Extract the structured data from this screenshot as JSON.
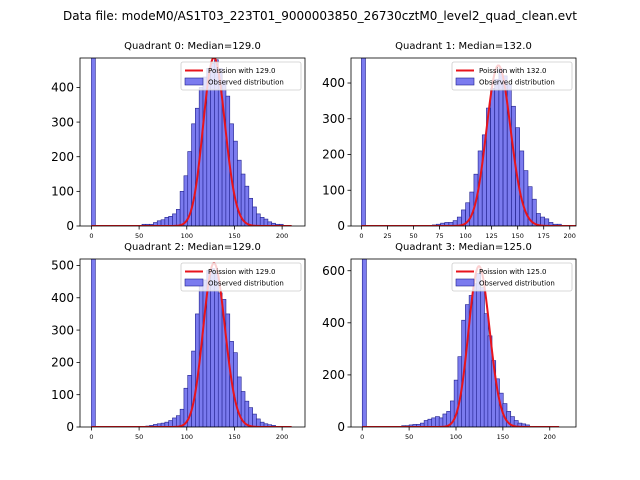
{
  "figure": {
    "suptitle": "Data file: modeM0/AS1T03_223T01_9000003850_26730cztM0_level2_quad_clean.evt"
  },
  "colors": {
    "bar_fill": "#7b7bef",
    "bar_edge": "#1f1f8c",
    "curve": "#e8141c",
    "axis": "#000000"
  },
  "chart_data": [
    {
      "type": "bar",
      "title": "Quadrant 0: Median=129.0",
      "xlim": [
        -12,
        224
      ],
      "ylim": [
        0,
        485
      ],
      "xticks": [
        0,
        50,
        100,
        150,
        200
      ],
      "yticks": [
        0,
        100,
        200,
        300,
        400
      ],
      "bin_width": 4.1,
      "bins": [
        [
          0,
          485
        ],
        [
          53,
          5
        ],
        [
          57,
          5
        ],
        [
          61,
          5
        ],
        [
          65,
          10
        ],
        [
          69,
          15
        ],
        [
          73,
          18
        ],
        [
          77,
          25
        ],
        [
          81,
          28
        ],
        [
          85,
          35
        ],
        [
          89,
          48
        ],
        [
          93,
          100
        ],
        [
          97,
          145
        ],
        [
          101,
          215
        ],
        [
          105,
          295
        ],
        [
          109,
          340
        ],
        [
          113,
          400
        ],
        [
          117,
          430
        ],
        [
          121,
          455
        ],
        [
          125,
          470
        ],
        [
          129,
          480
        ],
        [
          133,
          455
        ],
        [
          137,
          420
        ],
        [
          141,
          375
        ],
        [
          145,
          295
        ],
        [
          149,
          245
        ],
        [
          153,
          190
        ],
        [
          157,
          150
        ],
        [
          161,
          115
        ],
        [
          165,
          80
        ],
        [
          169,
          55
        ],
        [
          173,
          35
        ],
        [
          177,
          25
        ],
        [
          181,
          20
        ],
        [
          185,
          12
        ],
        [
          189,
          8
        ],
        [
          193,
          5
        ],
        [
          197,
          5
        ]
      ],
      "series": [
        {
          "name": "Poission with 129.0",
          "kind": "poisson",
          "lambda": 129.0,
          "scale": 486
        }
      ],
      "legend": [
        "Poission with 129.0",
        "Observed distribution"
      ],
      "legend_position": "upper right"
    },
    {
      "type": "bar",
      "title": "Quadrant 1: Median=132.0",
      "xlim": [
        -10,
        206
      ],
      "ylim": [
        0,
        470
      ],
      "xticks": [
        0,
        25,
        50,
        75,
        100,
        125,
        150,
        175,
        200
      ],
      "yticks": [
        0,
        100,
        200,
        300,
        400
      ],
      "bin_width": 3.9,
      "bins": [
        [
          0,
          470
        ],
        [
          68,
          3
        ],
        [
          72,
          5
        ],
        [
          76,
          8
        ],
        [
          80,
          10
        ],
        [
          84,
          10
        ],
        [
          88,
          15
        ],
        [
          92,
          25
        ],
        [
          96,
          45
        ],
        [
          100,
          65
        ],
        [
          104,
          95
        ],
        [
          108,
          145
        ],
        [
          112,
          210
        ],
        [
          116,
          255
        ],
        [
          120,
          330
        ],
        [
          124,
          385
        ],
        [
          128,
          410
        ],
        [
          132,
          440
        ],
        [
          136,
          420
        ],
        [
          140,
          395
        ],
        [
          144,
          335
        ],
        [
          148,
          275
        ],
        [
          152,
          210
        ],
        [
          156,
          155
        ],
        [
          160,
          110
        ],
        [
          164,
          75
        ],
        [
          168,
          35
        ],
        [
          172,
          25
        ],
        [
          176,
          20
        ],
        [
          180,
          10
        ],
        [
          184,
          5
        ],
        [
          188,
          5
        ]
      ],
      "series": [
        {
          "name": "Poission with 132.0",
          "kind": "poisson",
          "lambda": 132.0,
          "scale": 449
        }
      ],
      "legend": [
        "Poission with 132.0",
        "Observed distribution"
      ],
      "legend_position": "upper right"
    },
    {
      "type": "bar",
      "title": "Quadrant 2: Median=129.0",
      "xlim": [
        -12,
        224
      ],
      "ylim": [
        0,
        520
      ],
      "xticks": [
        0,
        50,
        100,
        150,
        200
      ],
      "yticks": [
        0,
        100,
        200,
        300,
        400,
        500
      ],
      "bin_width": 4.1,
      "bins": [
        [
          0,
          520
        ],
        [
          57,
          3
        ],
        [
          61,
          5
        ],
        [
          65,
          8
        ],
        [
          69,
          10
        ],
        [
          73,
          12
        ],
        [
          77,
          15
        ],
        [
          81,
          20
        ],
        [
          85,
          28
        ],
        [
          89,
          35
        ],
        [
          93,
          55
        ],
        [
          97,
          120
        ],
        [
          101,
          160
        ],
        [
          105,
          235
        ],
        [
          109,
          350
        ],
        [
          113,
          440
        ],
        [
          117,
          455
        ],
        [
          121,
          485
        ],
        [
          125,
          490
        ],
        [
          129,
          475
        ],
        [
          133,
          415
        ],
        [
          137,
          395
        ],
        [
          141,
          350
        ],
        [
          145,
          265
        ],
        [
          149,
          230
        ],
        [
          153,
          155
        ],
        [
          157,
          110
        ],
        [
          161,
          80
        ],
        [
          165,
          60
        ],
        [
          169,
          40
        ],
        [
          173,
          25
        ],
        [
          177,
          15
        ],
        [
          181,
          10
        ],
        [
          185,
          7
        ],
        [
          189,
          5
        ]
      ],
      "series": [
        {
          "name": "Poission with 129.0",
          "kind": "poisson",
          "lambda": 129.0,
          "scale": 507
        }
      ],
      "legend": [
        "Poission with 129.0",
        "Observed distribution"
      ],
      "legend_position": "upper right"
    },
    {
      "type": "bar",
      "title": "Quadrant 3: Median=125.0",
      "xlim": [
        -12,
        228
      ],
      "ylim": [
        0,
        645
      ],
      "xticks": [
        0,
        50,
        100,
        150,
        200
      ],
      "yticks": [
        0,
        200,
        400,
        600
      ],
      "bin_width": 4.4,
      "bins": [
        [
          0,
          645
        ],
        [
          42,
          5
        ],
        [
          46,
          5
        ],
        [
          50,
          8
        ],
        [
          54,
          10
        ],
        [
          58,
          10
        ],
        [
          62,
          15
        ],
        [
          66,
          25
        ],
        [
          70,
          30
        ],
        [
          74,
          35
        ],
        [
          78,
          40
        ],
        [
          82,
          35
        ],
        [
          86,
          50
        ],
        [
          90,
          60
        ],
        [
          94,
          100
        ],
        [
          98,
          180
        ],
        [
          102,
          270
        ],
        [
          106,
          410
        ],
        [
          110,
          470
        ],
        [
          114,
          505
        ],
        [
          118,
          550
        ],
        [
          122,
          590
        ],
        [
          126,
          535
        ],
        [
          130,
          435
        ],
        [
          134,
          350
        ],
        [
          138,
          255
        ],
        [
          142,
          185
        ],
        [
          146,
          130
        ],
        [
          150,
          90
        ],
        [
          154,
          60
        ],
        [
          158,
          40
        ],
        [
          162,
          25
        ],
        [
          166,
          15
        ],
        [
          170,
          12
        ],
        [
          174,
          8
        ]
      ],
      "series": [
        {
          "name": "Poission with 125.0",
          "kind": "poisson",
          "lambda": 125.0,
          "scale": 617
        }
      ],
      "legend": [
        "Poission with 125.0",
        "Observed distribution"
      ],
      "legend_position": "upper right"
    }
  ]
}
